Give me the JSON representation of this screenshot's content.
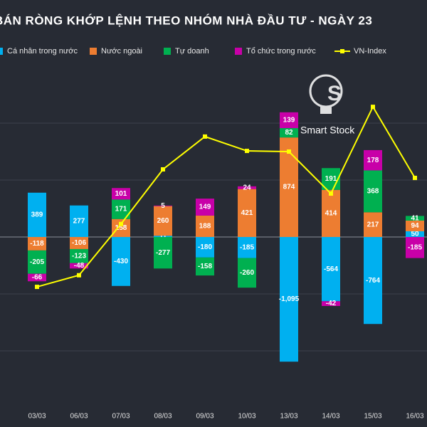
{
  "chart_data": {
    "type": "bar",
    "stacked": true,
    "title": "BÁN RÒNG KHỚP LỆNH THEO NHÓM NHÀ ĐẦU TƯ - NGÀY 23",
    "watermark": "Smart Stock",
    "categories": [
      "03/03",
      "06/03",
      "07/03",
      "08/03",
      "09/03",
      "10/03",
      "13/03",
      "14/03",
      "15/03",
      "16/03"
    ],
    "series": [
      {
        "name": "Cá nhân trong nước",
        "color": "#00b0f0",
        "values": [
          389,
          277,
          -430,
          11,
          -180,
          -185,
          -1095,
          -564,
          -764,
          50
        ],
        "value_labels": [
          "389",
          "277",
          "-430",
          "11",
          "-180",
          "-185",
          "-1,095",
          "-564",
          "-764",
          "50"
        ]
      },
      {
        "name": "Nước ngoài",
        "color": "#ed7d31",
        "values": [
          -118,
          -106,
          158,
          260,
          188,
          421,
          874,
          414,
          217,
          94
        ]
      },
      {
        "name": "Tự doanh",
        "color": "#00b050",
        "values": [
          -205,
          -123,
          171,
          -277,
          -158,
          -260,
          82,
          191,
          368,
          41
        ]
      },
      {
        "name": "Tổ chức trong nước",
        "color": "#c800a8",
        "values": [
          -66,
          -48,
          101,
          5,
          149,
          24,
          139,
          -42,
          178,
          -185
        ]
      },
      {
        "name": "VN-Index",
        "color": "#ffff00",
        "type": "line",
        "axis": "y2",
        "values": [
          1015.4,
          1018.8,
          1033.8,
          1049.8,
          1059.4,
          1055.2,
          1055,
          1042.7,
          1068.1,
          1047.3
        ]
      }
    ],
    "ylim": [
      -1500,
      1500
    ],
    "yticks": [
      -1000,
      -500,
      0,
      500,
      1000
    ],
    "y2lim": [
      980,
      1080
    ],
    "grid": true
  }
}
